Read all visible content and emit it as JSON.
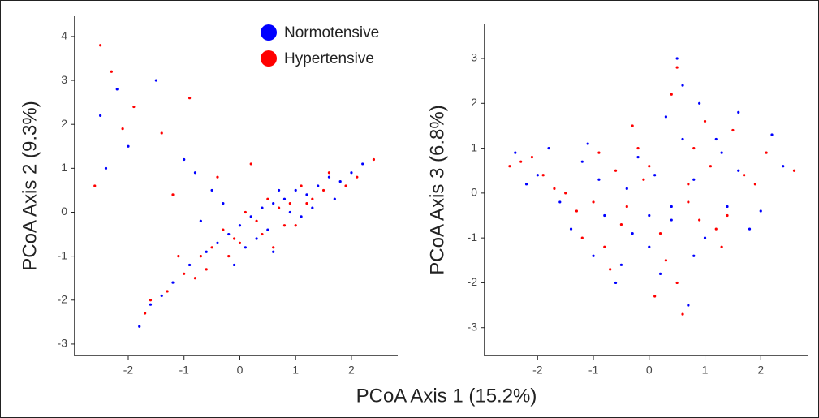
{
  "chart_data": [
    {
      "type": "scatter",
      "xlabel": "PCoA Axis 1 (15.2%)",
      "ylabel": "PCoA Axis 2 (9.3%)",
      "xlim": [
        -2.96,
        2.83
      ],
      "ylim": [
        -3.26,
        4.46
      ],
      "xticks": [
        -2,
        -1,
        0,
        1,
        2
      ],
      "yticks": [
        -3,
        -2,
        -1,
        0,
        1,
        2,
        3,
        4
      ],
      "series": [
        {
          "name": "Normotensive",
          "color": "#0000ff",
          "x": [
            -1.6,
            -1.2,
            -0.9,
            -0.6,
            -0.4,
            -0.2,
            0,
            0.2,
            0.4,
            0.6,
            0.8,
            1,
            1.2,
            1.4,
            1.6,
            1.8,
            2,
            -0.3,
            0.1,
            0.5,
            0.9,
            1.3,
            -0.7,
            -1.4,
            -2.2,
            -2.5,
            -2,
            -1.5,
            -1,
            -0.5,
            0.3,
            0.7,
            1.1,
            1.7,
            2.2,
            -0.1,
            0.6,
            -1.8,
            -2.4,
            -0.8
          ],
          "values": [
            -2.1,
            -1.6,
            -1.2,
            -0.9,
            -0.7,
            -0.5,
            -0.3,
            -0.1,
            0.1,
            0.2,
            0.3,
            0.5,
            0.4,
            0.6,
            0.8,
            0.7,
            0.9,
            0.2,
            -0.8,
            -0.4,
            0,
            0.1,
            -0.2,
            -1.9,
            2.8,
            2.2,
            1.5,
            3.0,
            1.2,
            0.5,
            -0.6,
            0.5,
            -0.1,
            0.3,
            1.1,
            -1.2,
            -0.9,
            -2.6,
            1.0,
            0.9
          ]
        },
        {
          "name": "Hypertensive",
          "color": "#ff0000",
          "x": [
            -1.7,
            -1.3,
            -1.0,
            -0.7,
            -0.5,
            -0.3,
            -0.1,
            0.1,
            0.3,
            0.5,
            0.7,
            0.9,
            1.1,
            1.3,
            1.5,
            1.9,
            2.1,
            -0.2,
            0.4,
            0.8,
            1.2,
            -0.6,
            -1.1,
            -2.3,
            -2.6,
            -1.9,
            -1.4,
            -0.9,
            -0.4,
            0.2,
            1.0,
            1.6,
            -2.1,
            -1.6,
            0,
            2.4,
            -2.5,
            -1.2,
            0.6,
            -0.8
          ],
          "values": [
            -2.3,
            -1.8,
            -1.4,
            -1.0,
            -0.8,
            -0.4,
            -0.6,
            0,
            -0.2,
            0.3,
            0.1,
            0.2,
            0.6,
            0.3,
            0.5,
            0.6,
            0.8,
            -1.0,
            -0.5,
            -0.3,
            0.2,
            -1.3,
            -1.0,
            3.2,
            0.6,
            2.4,
            1.8,
            2.6,
            0.8,
            1.1,
            -0.3,
            0.9,
            1.9,
            -2.0,
            -0.7,
            1.2,
            3.8,
            0.4,
            -0.8,
            -1.5
          ]
        }
      ]
    },
    {
      "type": "scatter",
      "ylabel": "PCoA Axis 3 (6.8%)",
      "xlim": [
        -2.95,
        2.84
      ],
      "ylim": [
        -3.62,
        3.76
      ],
      "xticks": [
        -2,
        -1,
        0,
        1,
        2
      ],
      "yticks": [
        -3,
        -2,
        -1,
        0,
        1,
        2,
        3
      ],
      "series": [
        {
          "color": "#0000ff",
          "x": [
            -2.4,
            -2,
            -1.6,
            -1.2,
            -0.8,
            -0.4,
            0,
            0.4,
            0.8,
            1.2,
            1.6,
            2,
            2.4,
            -1.8,
            -1,
            -0.2,
            0.6,
            1.4,
            2.2,
            -0.6,
            0.2,
            1,
            -1.4,
            0.5,
            0.3,
            0.7,
            -0.3,
            0.1,
            0.9,
            1.8,
            -2.2,
            -1.1,
            -0.5,
            0.4,
            1.3,
            0,
            0.6,
            -0.9,
            1.6,
            0.8
          ],
          "values": [
            0.9,
            0.4,
            -0.2,
            0.7,
            -0.5,
            0.1,
            -1.2,
            -0.6,
            0.3,
            1.2,
            0.5,
            -0.4,
            0.6,
            1.0,
            -1.4,
            0.8,
            2.4,
            -0.3,
            1.3,
            -2.0,
            -1.8,
            -1.0,
            -0.8,
            3.0,
            1.7,
            -2.5,
            -0.9,
            0.4,
            2.0,
            -0.8,
            0.2,
            1.1,
            -1.6,
            -0.3,
            0.9,
            -0.5,
            1.2,
            0.3,
            1.8,
            -1.4
          ]
        },
        {
          "color": "#ff0000",
          "x": [
            -2.5,
            -2.1,
            -1.7,
            -1.3,
            -0.9,
            -0.5,
            -0.1,
            0.3,
            0.7,
            1.1,
            1.5,
            1.9,
            2.6,
            -1.9,
            -1.2,
            -0.3,
            0.5,
            1.3,
            2.1,
            -0.7,
            0.1,
            0.9,
            -1.5,
            0.6,
            0.4,
            0.8,
            -0.4,
            0.2,
            1.0,
            1.7,
            -2.3,
            -1.0,
            -0.6,
            0.5,
            1.2,
            -0.2,
            0.7,
            -0.8,
            1.4,
            0.0
          ],
          "values": [
            0.6,
            0.8,
            0.1,
            -0.4,
            0.9,
            -0.7,
            0.3,
            -1.5,
            -0.2,
            0.6,
            1.4,
            0.2,
            0.5,
            0.4,
            -1.0,
            1.5,
            2.8,
            -1.2,
            0.9,
            -1.7,
            -2.3,
            -0.6,
            0.0,
            -2.7,
            2.2,
            1.0,
            -0.3,
            -0.9,
            1.6,
            0.4,
            0.7,
            -0.2,
            0.5,
            -2.0,
            -0.8,
            1.0,
            0.2,
            -1.2,
            -0.5,
            0.6
          ]
        }
      ]
    }
  ]
}
